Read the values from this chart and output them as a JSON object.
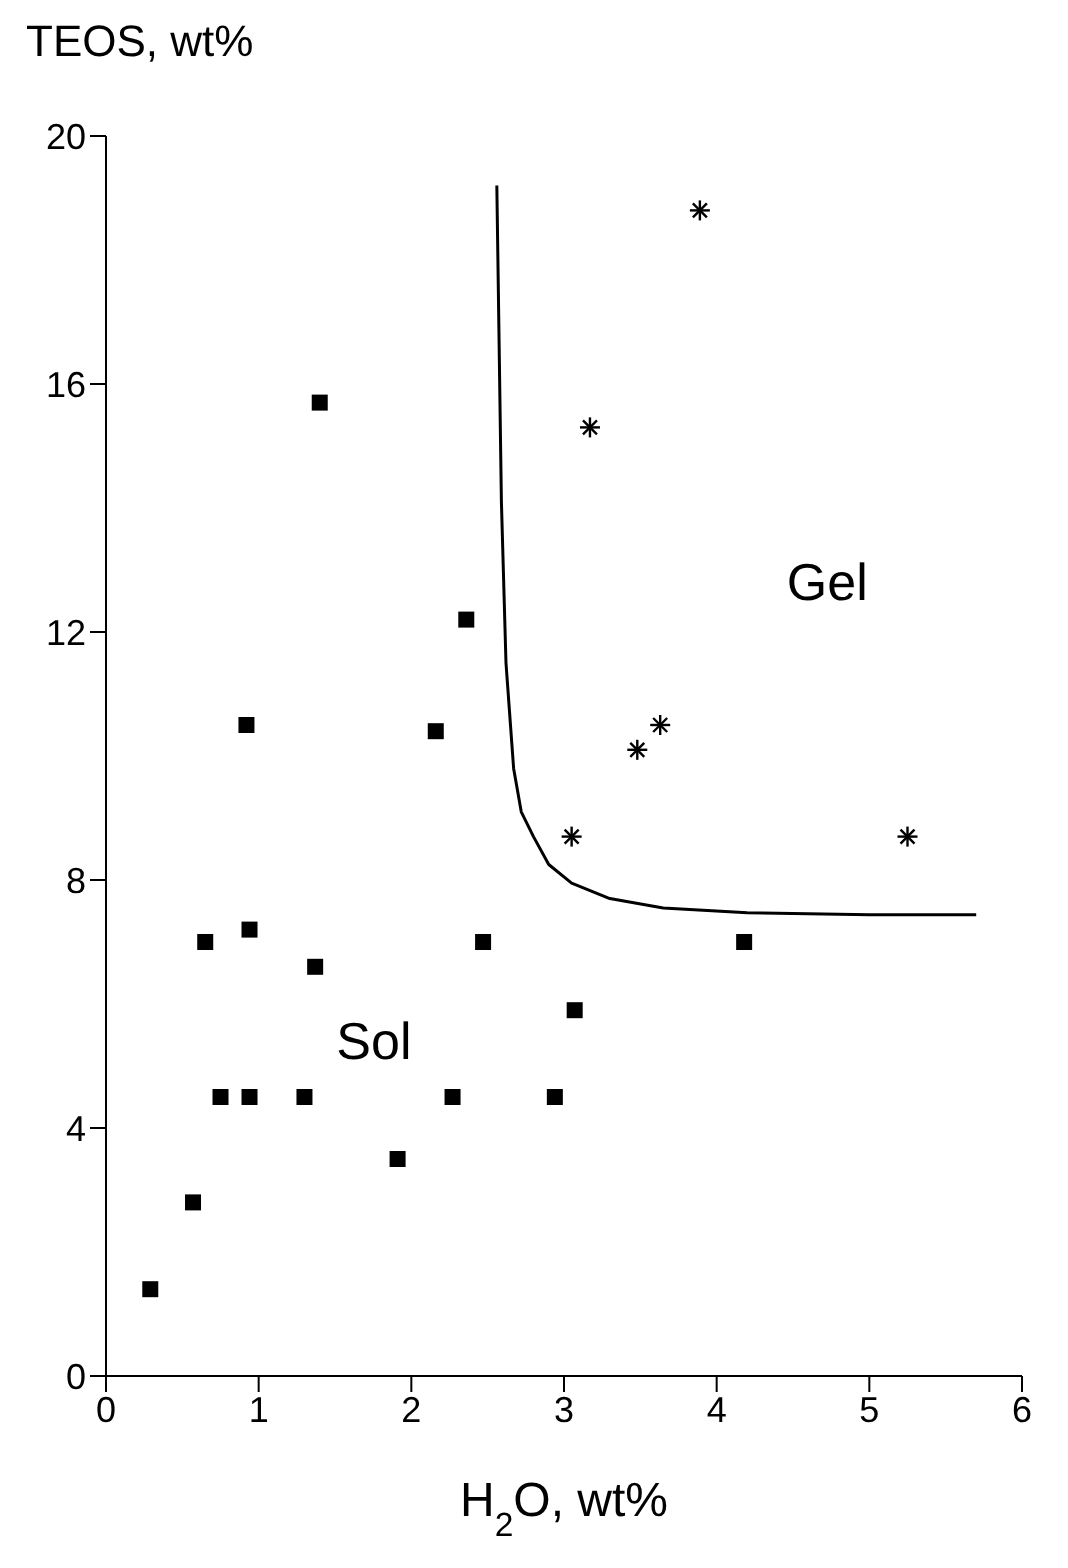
{
  "chart_data": {
    "type": "scatter",
    "xlabel": "H$_{2}$O, wt%",
    "ylabel": "TEOS, wt%",
    "xlim": [
      0,
      6
    ],
    "ylim": [
      0,
      20
    ],
    "xticks": [
      0,
      1,
      2,
      3,
      4,
      5,
      6
    ],
    "yticks": [
      0,
      4,
      8,
      12,
      16,
      20
    ],
    "grid": false,
    "legend": false,
    "annotations": [
      "Sol",
      "Gel"
    ],
    "series": [
      {
        "type": "scatter",
        "marker": "square",
        "color": "#000000",
        "x": [
          1.4,
          2.36,
          0.92,
          2.16,
          0.65,
          0.94,
          1.37,
          2.47,
          3.07,
          0.75,
          0.94,
          1.3,
          2.27,
          2.94,
          1.91,
          0.57,
          0.29,
          4.18
        ],
        "values": [
          15.7,
          12.2,
          10.5,
          10.4,
          7.0,
          7.2,
          6.6,
          7.0,
          5.9,
          4.5,
          4.5,
          4.5,
          4.5,
          4.5,
          3.5,
          2.8,
          1.4,
          7.0
        ]
      },
      {
        "type": "scatter",
        "marker": "cross",
        "color": "#000000",
        "x": [
          3.89,
          3.17,
          3.63,
          3.48,
          3.05,
          5.25
        ],
        "values": [
          18.8,
          15.3,
          10.5,
          10.1,
          8.7,
          8.7
        ]
      },
      {
        "type": "line",
        "marker": "none",
        "color": "#000000",
        "x": [
          2.56,
          2.59,
          2.62,
          2.67,
          2.72,
          2.8,
          2.9,
          3.05,
          3.3,
          3.65,
          4.2,
          5.0,
          5.7
        ],
        "values": [
          19.2,
          14.1,
          11.5,
          9.8,
          9.1,
          8.7,
          8.25,
          7.95,
          7.7,
          7.55,
          7.47,
          7.44,
          7.44
        ]
      }
    ]
  }
}
